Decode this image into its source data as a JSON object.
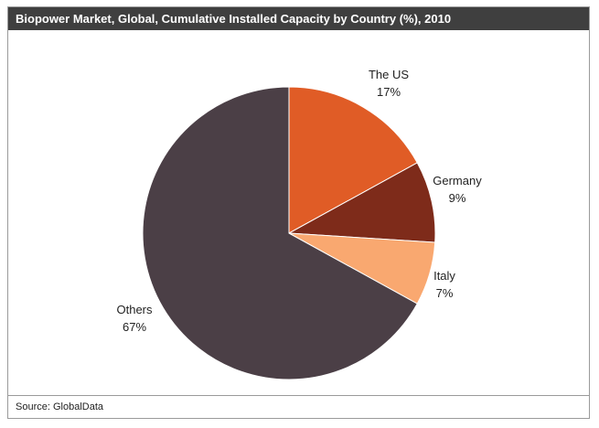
{
  "chart_data": {
    "type": "pie",
    "title": "Biopower Market, Global, Cumulative Installed Capacity by Country (%), 2010",
    "source": "Source: GlobalData",
    "slices": [
      {
        "label": "The US",
        "value": 17,
        "value_label": "17%",
        "color": "#e05c26"
      },
      {
        "label": "Germany",
        "value": 9,
        "value_label": "9%",
        "color": "#7e2b1a"
      },
      {
        "label": "Italy",
        "value": 7,
        "value_label": "7%",
        "color": "#f9a870"
      },
      {
        "label": "Others",
        "value": 67,
        "value_label": "67%",
        "color": "#4b3f46"
      }
    ]
  }
}
